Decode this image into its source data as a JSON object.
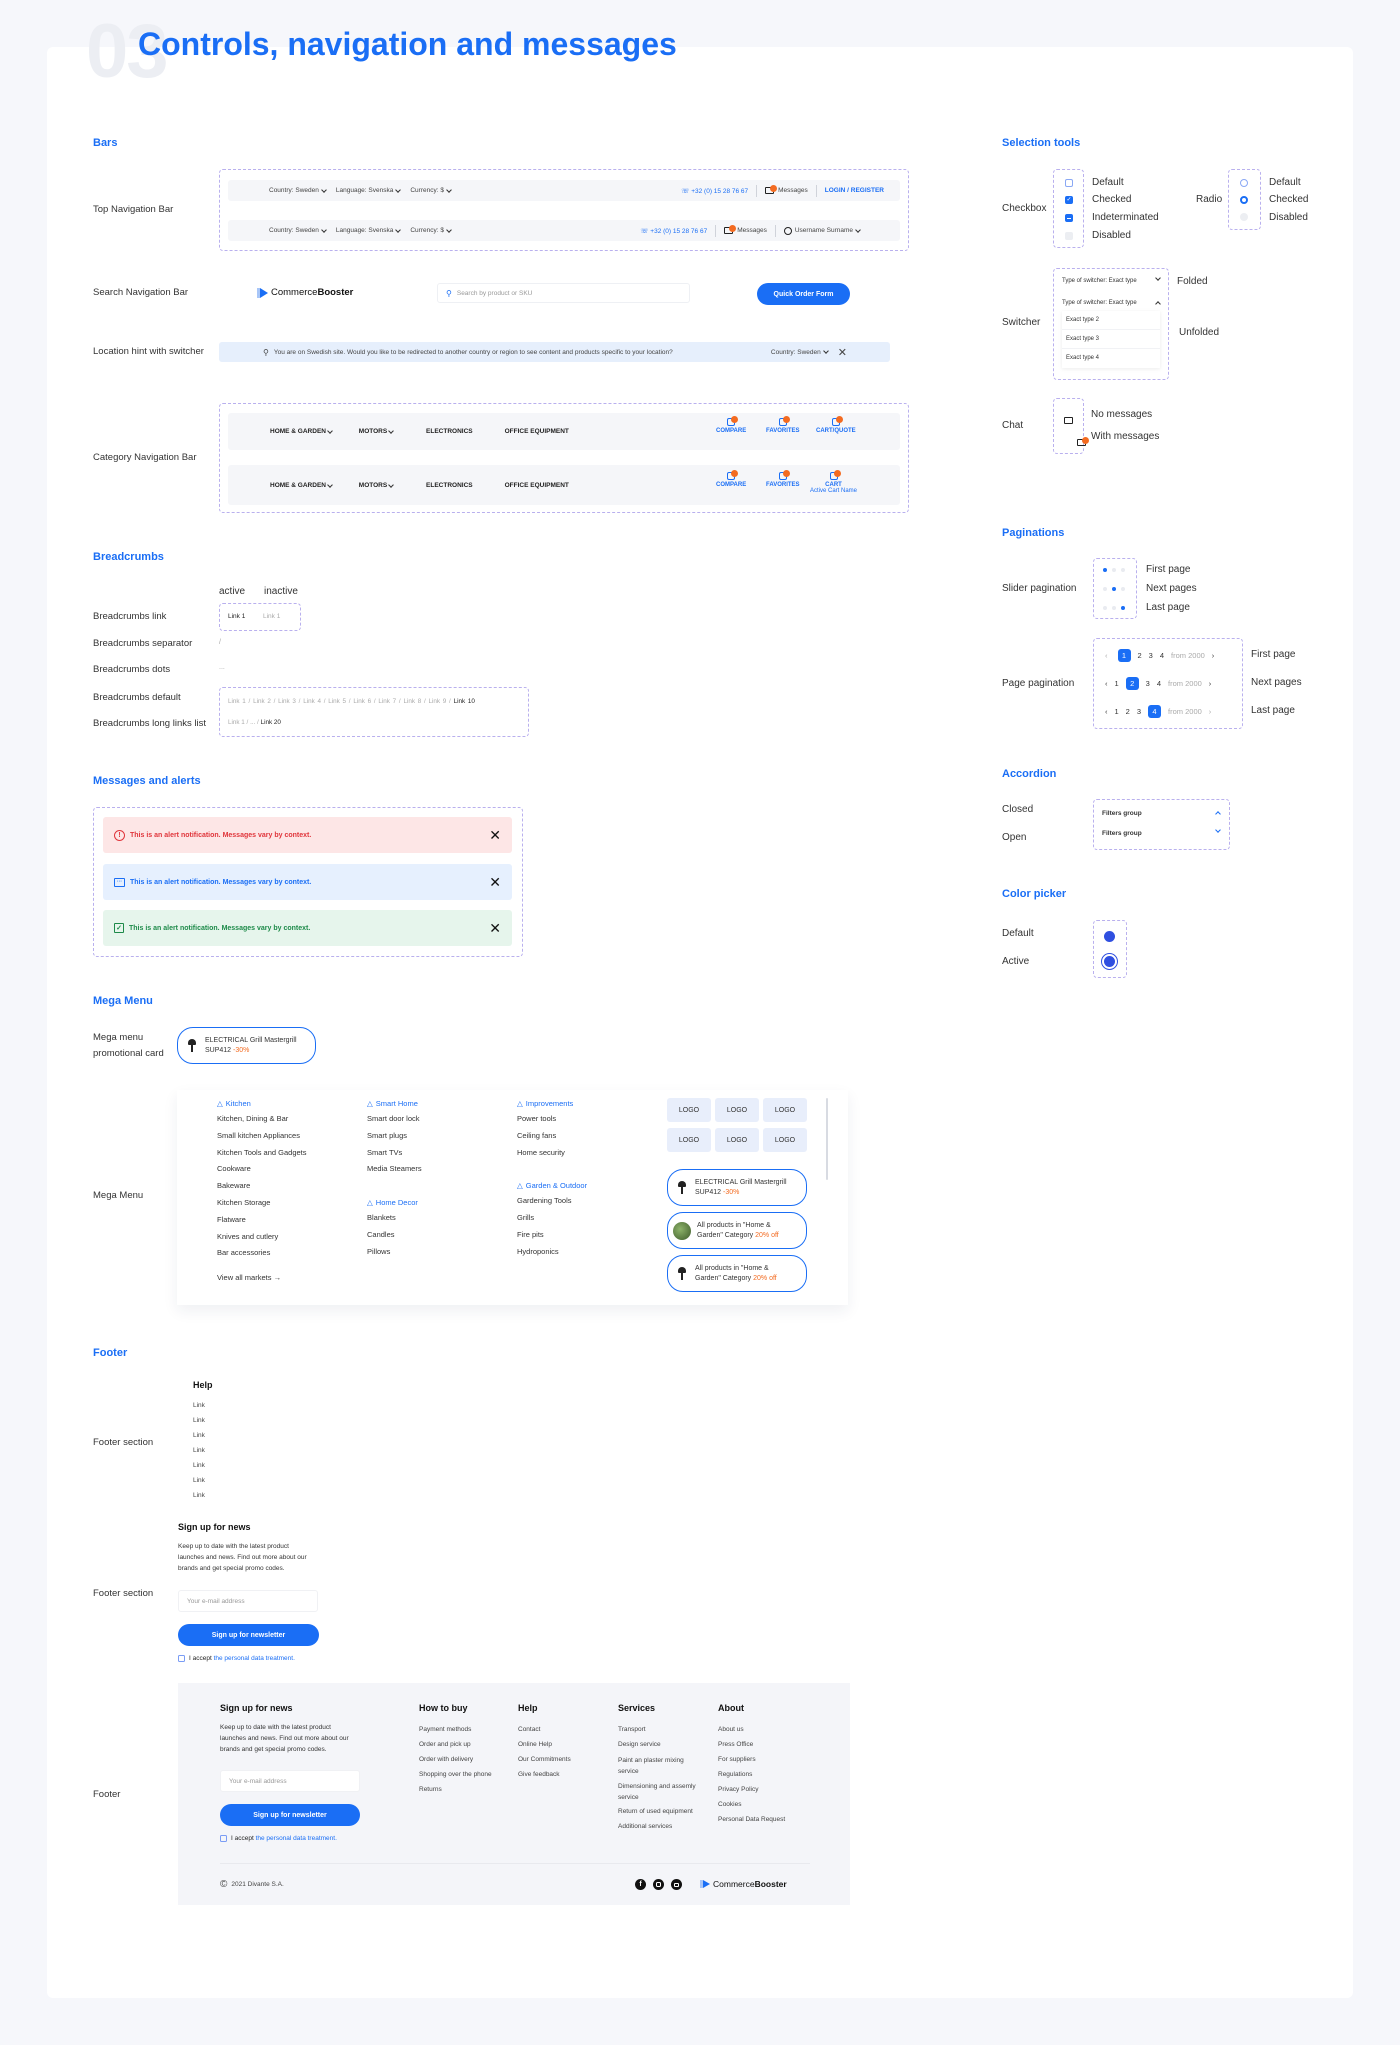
{
  "page": {
    "number": "03",
    "title": "Controls, navigation and messages"
  },
  "colors": {
    "accent": "#1a6ef5",
    "badge": "#f36b21",
    "error_bg": "#fde6e6",
    "error_text": "#e0353b",
    "info_bg": "#e6f0fe",
    "success_bg": "#e6f5ec",
    "success_text": "#1d8a49",
    "color_picker": "#2f4fe0"
  },
  "bars": {
    "heading": "Bars",
    "top_nav_label": "Top Navigation Bar",
    "search_nav_label": "Search Navigation Bar",
    "location_label": "Location hint with switcher",
    "category_nav_label": "Category Navigation Bar",
    "country": "Country: Sweden",
    "language": "Language: Svenska",
    "currency": "Currency: $",
    "phone": "+32 (0) 15 28 76 67",
    "messages": "Messages",
    "login": "LOGIN / REGISTER",
    "username": "Username Surname",
    "brand_light": "Commerce",
    "brand_bold": "Booster",
    "search_placeholder": "Search by product or SKU",
    "quick_order": "Quick Order Form",
    "location_text": "You are on Swedish site. Would you like to be redirected to another country or region to see content and products specific to your location?",
    "categories": [
      "HOME & GARDEN",
      "MOTORS",
      "ELECTRONICS",
      "OFFICE EQUIPMENT"
    ],
    "compare": "COMPARE",
    "favorites": "FAVORITES",
    "cart_quote": "CART/QUOTE",
    "cart": "CART",
    "active_cart": "Active Cart Name"
  },
  "breadcrumbs": {
    "heading": "Breadcrumbs",
    "active": "active",
    "inactive": "inactive",
    "link_label": "Breadcrumbs link",
    "separator_label": "Breadcrumbs separator",
    "dots_label": "Breadcrumbs dots",
    "default_label": "Breadcrumbs default",
    "long_label": "Breadcrumbs long links list",
    "link1": "Link 1",
    "separator": "/",
    "dots": "...",
    "default_links": [
      "Link 1",
      "Link 2",
      "Link 3",
      "Link 4",
      "Link 5",
      "Link 6",
      "Link 7",
      "Link 8",
      "Link 9",
      "Link 10"
    ],
    "long_links": [
      "Link 1",
      "...",
      "Link 20"
    ]
  },
  "alerts": {
    "heading": "Messages and alerts",
    "items": [
      {
        "type": "error",
        "icon": "alert-circle-icon",
        "text": "This is an alert notification. Messages vary by context."
      },
      {
        "type": "info",
        "icon": "chat-bubble-icon",
        "text": "This is an alert notification. Messages vary by context."
      },
      {
        "type": "success",
        "icon": "check-square-icon",
        "text": "This is an alert notification. Messages vary by context."
      }
    ]
  },
  "mega": {
    "heading": "Mega Menu",
    "promo_label_1": "Mega menu",
    "promo_label_2": "promotional card",
    "menu_label": "Mega Menu",
    "promo": {
      "title": "ELECTRICAL Grill Mastergrill",
      "sku": "SUP412",
      "discount": "-30%"
    },
    "columns": [
      {
        "heading": "Kitchen",
        "items": [
          "Kitchen, Dining & Bar",
          "Small kitchen Appliances",
          "Kitchen Tools and Gadgets",
          "Cookware",
          "Bakeware",
          "Kitchen Storage",
          "Flatware",
          "Knives and cutlery",
          "Bar accessories"
        ]
      },
      {
        "heading": "Smart Home",
        "items": [
          "Smart door lock",
          "Smart plugs",
          "Smart TVs",
          "Media Steamers"
        ]
      },
      {
        "heading": "Home Decor",
        "items": [
          "Blankets",
          "Candles",
          "Pillows"
        ]
      },
      {
        "heading": "Improvements",
        "items": [
          "Power tools",
          "Ceiling fans",
          "Home security"
        ]
      },
      {
        "heading": "Garden & Outdoor",
        "items": [
          "Gardening Tools",
          "Grills",
          "Fire pits",
          "Hydroponics"
        ]
      }
    ],
    "view_all": "View all markets",
    "logo": "LOGO",
    "cards": [
      {
        "line1": "ELECTRICAL Grill Mastergrill",
        "line2": "SUP412",
        "discount": "-30%"
      },
      {
        "line1": "All products in \"Home &",
        "line2": "Garden\" Category",
        "discount": "20% off"
      },
      {
        "line1": "All products in \"Home &",
        "line2": "Garden\" Category",
        "discount": "20% off"
      }
    ]
  },
  "footer": {
    "heading": "Footer",
    "section_label": "Footer section",
    "footer_label": "Footer",
    "help": "Help",
    "link": "Link",
    "signup_title": "Sign up for news",
    "signup_desc": [
      "Keep up to date with the latest product",
      "launches and news. Find out more about our",
      "brands and get special promo codes."
    ],
    "email_placeholder": "Your e-mail address",
    "signup_button": "Sign up for newsletter",
    "accept": "I accept",
    "accept_link": "the personal data treatment.",
    "columns": [
      {
        "title": "How to buy",
        "links": [
          "Payment methods",
          "Order and pick up",
          "Order with delivery",
          "Shopping over the phone",
          "Returns"
        ]
      },
      {
        "title": "Help",
        "links": [
          "Contact",
          "Online Help",
          "Our Commitments",
          "Give feedback"
        ]
      },
      {
        "title": "Services",
        "links": [
          "Transport",
          "Design service",
          "Paint an plaster mixing service",
          "Dimensioning and assemly service",
          "Return of used equipment",
          "Additional services"
        ]
      },
      {
        "title": "About",
        "links": [
          "About us",
          "Press Office",
          "For suppliers",
          "Regulations",
          "Privacy Policy",
          "Cookies",
          "Personal Data Request"
        ]
      }
    ],
    "copyright": "2021 Divante S.A."
  },
  "selection": {
    "heading": "Selection tools",
    "checkbox_label": "Checkbox",
    "checkbox_states": [
      "Default",
      "Checked",
      "Indeterminated",
      "Disabled"
    ],
    "radio_label": "Radio",
    "radio_states": [
      "Default",
      "Checked",
      "Disabled"
    ],
    "switcher_label": "Switcher",
    "switcher_value": "Type of switcher: Exact type",
    "switcher_options": [
      "Exact type 2",
      "Exact type 3",
      "Exact type 4"
    ],
    "folded": "Folded",
    "unfolded": "Unfolded",
    "chat_label": "Chat",
    "no_messages": "No messages",
    "with_messages": "With messages"
  },
  "pagination": {
    "heading": "Paginations",
    "slider_label": "Slider pagination",
    "page_label": "Page pagination",
    "states": [
      "First page",
      "Next pages",
      "Last page"
    ],
    "from": "from 2000",
    "rows": [
      {
        "pages": [
          "1",
          "2",
          "3",
          "4"
        ],
        "active": "1"
      },
      {
        "pages": [
          "1",
          "2",
          "3",
          "4"
        ],
        "active": "2"
      },
      {
        "pages": [
          "1",
          "2",
          "3",
          "4"
        ],
        "active": "4"
      }
    ]
  },
  "accordion": {
    "heading": "Accordion",
    "closed": "Closed",
    "open": "Open",
    "item": "Filters group"
  },
  "color_picker": {
    "heading": "Color picker",
    "default": "Default",
    "active": "Active"
  }
}
